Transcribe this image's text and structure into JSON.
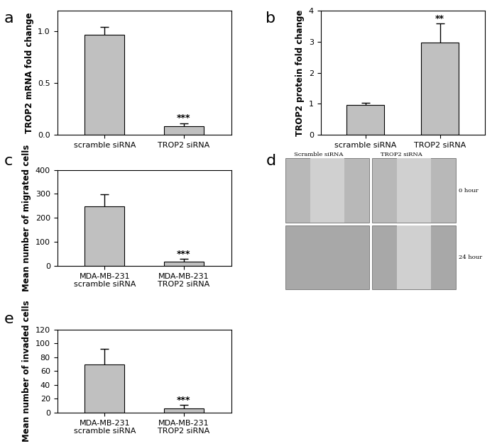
{
  "chart_data": [
    {
      "type": "bar",
      "annotation": "a",
      "categories": [
        "scramble siRNA",
        "TROP2 siRNA"
      ],
      "values": [
        0.97,
        0.08
      ],
      "errors": [
        0.07,
        0.03
      ],
      "significance": [
        null,
        "***"
      ],
      "y_label": "TROP2 mRNA fold change",
      "ylim": [
        0,
        1.2
      ],
      "yticks": [
        {
          "value": 0,
          "label": "0.0"
        },
        {
          "value": 0.5,
          "label": "0.5"
        },
        {
          "value": 1,
          "label": "1.0"
        }
      ],
      "color": "#c0c0c0"
    },
    {
      "type": "bar",
      "annotation": "b",
      "categories": [
        "scramble siRNA",
        "TROP2 siRNA"
      ],
      "values": [
        0.97,
        2.98
      ],
      "errors": [
        0.06,
        0.6
      ],
      "significance": [
        null,
        "**"
      ],
      "y_label": "TROP2 protein fold change",
      "ylim": [
        0,
        4
      ],
      "yticks": [
        0,
        1,
        2,
        3,
        4
      ],
      "color": "#c0c0c0"
    },
    {
      "type": "bar",
      "annotation": "c",
      "categories": [
        "MDA-MB-231\nscramble siRNA",
        "MDA-MB-231\nTROP2 siRNA"
      ],
      "values": [
        248,
        18
      ],
      "errors": [
        50,
        10
      ],
      "significance": [
        null,
        "***"
      ],
      "y_label": "Mean number of migrated cells",
      "ylim": [
        0,
        400
      ],
      "yticks": [
        0,
        100,
        200,
        300,
        400
      ],
      "color": "#c0c0c0"
    },
    {
      "type": "bar",
      "annotation": "e",
      "categories": [
        "MDA-MB-231\nscramble siRNA",
        "MDA-MB-231\nTROP2 siRNA"
      ],
      "values": [
        70,
        6
      ],
      "errors": [
        22,
        5
      ],
      "significance": [
        null,
        "***"
      ],
      "y_label": "Mean number of invaded cells",
      "ylim": [
        0,
        120
      ],
      "yticks": [
        0,
        20,
        40,
        60,
        80,
        100,
        120
      ],
      "color": "#c0c0c0"
    }
  ],
  "image_panel": {
    "annotation": "d",
    "columns": [
      "Scramble siRNA",
      "TROP2 siRNA"
    ],
    "rows": [
      "0 hour",
      "24 hour"
    ]
  }
}
